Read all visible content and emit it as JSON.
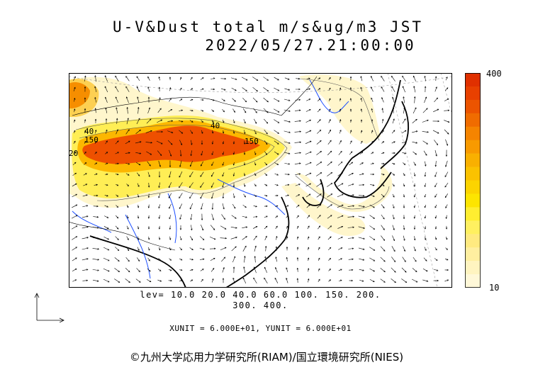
{
  "header": {
    "title": "U-V&Dust total m/s&ug/m3 JST",
    "datetime": "2022/05/27.21:00:00"
  },
  "colorbar": {
    "max_label": "400",
    "min_label": "10",
    "colors": [
      "#fff8d8",
      "#fff4c0",
      "#ffefa0",
      "#ffea80",
      "#fff060",
      "#ffee30",
      "#fde500",
      "#fcd400",
      "#fbc200",
      "#f9b000",
      "#f89a00",
      "#f58400",
      "#f06c00",
      "#ec5400",
      "#e84000",
      "#e03000"
    ]
  },
  "levels": {
    "line1": "lev= 10.0 20.0 40.0 60.0 100. 150. 200.",
    "line2": "300. 400."
  },
  "units": {
    "text": "XUNIT = 6.000E+01, YUNIT = 6.000E+01"
  },
  "contour_labels": {
    "a": "150",
    "b": "150",
    "c": "40",
    "d": "40",
    "e": "20"
  },
  "footer": {
    "copyright": "©九州大学応用力学研究所(RIAM)/国立環境研究所(NIES)"
  },
  "icons": {
    "reference_vector": "reference-vector-icon"
  }
}
